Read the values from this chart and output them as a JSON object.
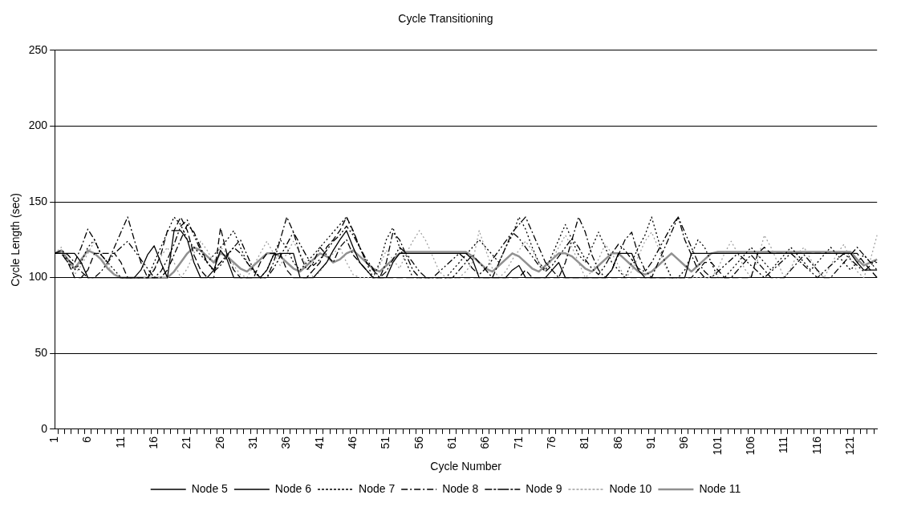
{
  "chart_data": {
    "type": "line",
    "title": "Cycle Transitioning",
    "xlabel": "Cycle Number",
    "ylabel": "Cycle Length (sec)",
    "categories": [
      "1",
      null,
      null,
      null,
      null,
      "6",
      null,
      null,
      null,
      null,
      "11",
      null,
      null,
      null,
      null,
      "16",
      null,
      null,
      null,
      null,
      "21",
      null,
      null,
      null,
      null,
      "26",
      null,
      null,
      null,
      null,
      "31",
      null,
      null,
      null,
      null,
      "36",
      null,
      null,
      null,
      null,
      "41",
      null,
      null,
      null,
      null,
      "46",
      null,
      null,
      null,
      null,
      "51",
      null,
      null,
      null,
      null,
      "56",
      null,
      null,
      null,
      null,
      "61",
      null,
      null,
      null,
      null,
      "66",
      null,
      null,
      null,
      null,
      "71",
      null,
      null,
      null,
      null,
      "76",
      null,
      null,
      null,
      null,
      "81",
      null,
      null,
      null,
      null,
      "86",
      null,
      null,
      null,
      null,
      "91",
      null,
      null,
      null,
      null,
      "96",
      null,
      null,
      null,
      null,
      "101",
      null,
      null,
      null,
      null,
      "106",
      null,
      null,
      null,
      null,
      "111",
      null,
      null,
      null,
      null,
      "116",
      null,
      null,
      null,
      null,
      "121",
      null,
      null,
      null,
      null
    ],
    "ylim": [
      0,
      250
    ],
    "yticks": [
      0,
      50,
      100,
      150,
      200,
      250
    ],
    "grid": "y",
    "legend": "bottom",
    "marker": "none",
    "series": [
      {
        "name": "Node 5",
        "color": "#000000",
        "line_style": "solid",
        "values": [
          116,
          116,
          116,
          116,
          110,
          100,
          100,
          100,
          100,
          100,
          100,
          100,
          100,
          105,
          115,
          121,
          110,
          100,
          131,
          131,
          125,
          110,
          100,
          100,
          105,
          118,
          112,
          100,
          100,
          100,
          100,
          100,
          105,
          115,
          116,
          116,
          116,
          100,
          100,
          100,
          105,
          110,
          118,
          125,
          131,
          120,
          110,
          105,
          100,
          100,
          100,
          110,
          116,
          116,
          116,
          116,
          116,
          116,
          116,
          116,
          116,
          116,
          116,
          112,
          100,
          100,
          100,
          100,
          100,
          105,
          108,
          100,
          100,
          100,
          100,
          105,
          110,
          100,
          100,
          100,
          100,
          100,
          100,
          100,
          105,
          116,
          116,
          116,
          105,
          100,
          100,
          100,
          100,
          100,
          100,
          100,
          116,
          116,
          116,
          116,
          116,
          116,
          116,
          116,
          116,
          116,
          116,
          116,
          116,
          116,
          116,
          116,
          116,
          116,
          116,
          116,
          116,
          116,
          116,
          116,
          116,
          110,
          105,
          105,
          105
        ]
      },
      {
        "name": "Node 6",
        "color": "#000000",
        "line_style": "dashed",
        "values": [
          116,
          116,
          110,
          100,
          100,
          105,
          116,
          116,
          116,
          116,
          110,
          100,
          100,
          100,
          100,
          105,
          115,
          131,
          131,
          140,
          131,
          115,
          105,
          100,
          100,
          133,
          115,
          105,
          100,
          100,
          100,
          110,
          116,
          116,
          116,
          105,
          100,
          100,
          100,
          105,
          110,
          120,
          125,
          131,
          140,
          131,
          120,
          110,
          105,
          100,
          100,
          100,
          100,
          100,
          100,
          100,
          100,
          100,
          100,
          100,
          100,
          100,
          100,
          100,
          100,
          100,
          100,
          100,
          100,
          100,
          100,
          105,
          100,
          100,
          100,
          100,
          100,
          100,
          100,
          100,
          100,
          100,
          100,
          100,
          100,
          100,
          100,
          100,
          100,
          100,
          100,
          100,
          100,
          100,
          100,
          100,
          100,
          105,
          110,
          110,
          105,
          100,
          100,
          100,
          100,
          100,
          116,
          120,
          116,
          116,
          116,
          116,
          116,
          116,
          116,
          116,
          116,
          116,
          116,
          116,
          116,
          116,
          110,
          105,
          100
        ]
      },
      {
        "name": "Node 7",
        "color": "#000000",
        "line_style": "dotted",
        "values": [
          116,
          116,
          110,
          105,
          110,
          120,
          125,
          115,
          110,
          105,
          100,
          100,
          100,
          100,
          100,
          110,
          120,
          130,
          140,
          135,
          125,
          120,
          115,
          110,
          115,
          120,
          125,
          131,
          120,
          110,
          105,
          100,
          105,
          115,
          125,
          120,
          110,
          105,
          110,
          115,
          120,
          125,
          130,
          135,
          140,
          130,
          120,
          110,
          100,
          110,
          125,
          133,
          120,
          110,
          100,
          100,
          100,
          100,
          100,
          100,
          105,
          110,
          115,
          120,
          125,
          120,
          115,
          110,
          120,
          128,
          140,
          132,
          120,
          110,
          105,
          115,
          125,
          135,
          125,
          115,
          110,
          120,
          130,
          120,
          110,
          105,
          100,
          110,
          120,
          128,
          140,
          125,
          110,
          100,
          100,
          105,
          115,
          125,
          120,
          110,
          100,
          100,
          105,
          110,
          115,
          120,
          115,
          110,
          105,
          110,
          115,
          120,
          115,
          110,
          105,
          110,
          115,
          120,
          115,
          110,
          105,
          110,
          115,
          110,
          105
        ]
      },
      {
        "name": "Node 8",
        "color": "#000000",
        "line_style": "dashdot",
        "values": [
          116,
          118,
          115,
          110,
          120,
          132,
          125,
          115,
          110,
          120,
          130,
          140,
          125,
          110,
          100,
          100,
          100,
          105,
          115,
          125,
          135,
          130,
          120,
          110,
          105,
          110,
          115,
          120,
          125,
          115,
          105,
          100,
          100,
          110,
          125,
          140,
          130,
          115,
          105,
          110,
          120,
          115,
          110,
          120,
          125,
          115,
          110,
          105,
          100,
          100,
          110,
          130,
          125,
          115,
          105,
          100,
          100,
          100,
          100,
          100,
          100,
          105,
          110,
          115,
          110,
          105,
          100,
          110,
          120,
          130,
          135,
          140,
          130,
          120,
          110,
          105,
          100,
          110,
          125,
          140,
          130,
          115,
          105,
          100,
          105,
          115,
          125,
          130,
          115,
          105,
          100,
          110,
          120,
          130,
          140,
          125,
          115,
          105,
          100,
          100,
          100,
          100,
          100,
          105,
          110,
          115,
          110,
          105,
          100,
          100,
          100,
          105,
          110,
          115,
          110,
          105,
          100,
          100,
          105,
          110,
          115,
          120,
          115,
          110,
          110
        ]
      },
      {
        "name": "Node 9",
        "color": "#000000",
        "line_style": "dashdotdot",
        "values": [
          116,
          116,
          112,
          108,
          104,
          100,
          100,
          104,
          110,
          116,
          120,
          124,
          118,
          112,
          106,
          100,
          104,
          112,
          122,
          134,
          138,
          128,
          118,
          110,
          104,
          108,
          114,
          120,
          116,
          110,
          104,
          100,
          100,
          106,
          114,
          122,
          130,
          122,
          114,
          108,
          112,
          118,
          124,
          128,
          134,
          128,
          120,
          112,
          106,
          100,
          104,
          112,
          120,
          116,
          110,
          104,
          100,
          100,
          104,
          108,
          112,
          116,
          112,
          106,
          102,
          106,
          112,
          118,
          124,
          130,
          126,
          120,
          114,
          108,
          104,
          108,
          114,
          120,
          126,
          120,
          112,
          106,
          102,
          108,
          116,
          122,
          118,
          112,
          106,
          104,
          110,
          118,
          126,
          134,
          140,
          130,
          120,
          110,
          104,
          100,
          104,
          108,
          112,
          116,
          112,
          108,
          104,
          100,
          104,
          108,
          112,
          116,
          112,
          108,
          104,
          100,
          104,
          108,
          112,
          116,
          112,
          108,
          104,
          108,
          112
        ]
      },
      {
        "name": "Node 10",
        "color": "#a0a0a0",
        "line_style": "dotted",
        "values": [
          116,
          120,
          110,
          102,
          108,
          116,
          124,
          116,
          108,
          102,
          100,
          100,
          100,
          100,
          100,
          106,
          114,
          120,
          110,
          100,
          106,
          116,
          124,
          118,
          110,
          120,
          116,
          108,
          102,
          100,
          108,
          116,
          124,
          116,
          108,
          116,
          124,
          116,
          108,
          100,
          104,
          110,
          116,
          120,
          110,
          102,
          100,
          100,
          100,
          108,
          118,
          112,
          106,
          116,
          124,
          131,
          124,
          114,
          104,
          100,
          100,
          100,
          104,
          110,
          131,
          118,
          106,
          100,
          104,
          112,
          118,
          124,
          118,
          110,
          104,
          112,
          120,
          128,
          120,
          110,
          100,
          104,
          112,
          122,
          116,
          108,
          100,
          104,
          114,
          124,
          130,
          120,
          108,
          100,
          100,
          100,
          100,
          100,
          100,
          100,
          106,
          116,
          124,
          116,
          106,
          100,
          112,
          128,
          120,
          110,
          100,
          106,
          116,
          120,
          112,
          104,
          100,
          108,
          116,
          122,
          112,
          104,
          100,
          112,
          128
        ]
      },
      {
        "name": "Node 11",
        "color": "#909090",
        "line_style": "solid",
        "values": [
          116,
          118,
          112,
          106,
          112,
          118,
          116,
          112,
          106,
          102,
          100,
          100,
          100,
          100,
          100,
          100,
          100,
          100,
          104,
          110,
          116,
          120,
          118,
          114,
          110,
          116,
          114,
          110,
          106,
          104,
          108,
          112,
          116,
          116,
          114,
          110,
          106,
          104,
          108,
          112,
          116,
          114,
          110,
          112,
          116,
          118,
          114,
          110,
          106,
          104,
          108,
          112,
          116,
          117,
          117,
          117,
          117,
          117,
          117,
          117,
          117,
          117,
          117,
          114,
          110,
          106,
          104,
          108,
          112,
          116,
          114,
          110,
          106,
          104,
          108,
          112,
          116,
          116,
          114,
          110,
          106,
          104,
          108,
          112,
          116,
          116,
          112,
          108,
          104,
          102,
          104,
          108,
          112,
          116,
          112,
          108,
          104,
          108,
          112,
          116,
          117,
          117,
          117,
          117,
          117,
          117,
          117,
          117,
          117,
          117,
          117,
          117,
          117,
          117,
          117,
          117,
          117,
          117,
          117,
          117,
          117,
          112,
          108,
          110,
          112
        ]
      }
    ]
  }
}
